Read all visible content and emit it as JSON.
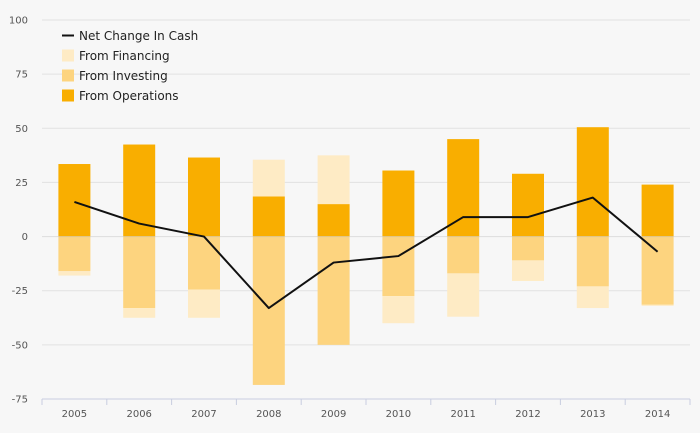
{
  "chart_data": {
    "type": "bar",
    "stacking": "diverging",
    "categories": [
      "2005",
      "2006",
      "2007",
      "2008",
      "2009",
      "2010",
      "2011",
      "2012",
      "2013",
      "2014"
    ],
    "ylim": [
      -75,
      100
    ],
    "yticks": [
      100,
      75,
      50,
      25,
      0,
      -25,
      -50,
      -75
    ],
    "grid": true,
    "legend_position": "top-left",
    "series": [
      {
        "name": "From Operations",
        "type": "bar",
        "color": "#f9ae00",
        "values": [
          33.5,
          42.5,
          36.5,
          18.5,
          15,
          30.5,
          45,
          29,
          50.5,
          24
        ]
      },
      {
        "name": "From Investing",
        "type": "bar",
        "color": "#fdd47f",
        "values": [
          -16,
          -33,
          -24.5,
          -68.5,
          -50,
          -27.5,
          -17,
          -11,
          -23,
          -31.5
        ]
      },
      {
        "name": "From Financing",
        "type": "bar",
        "color": "#feebc5",
        "values": [
          -2,
          -4.5,
          -13,
          17,
          22.5,
          -12.5,
          -20,
          -9.5,
          -10,
          -0.5
        ]
      },
      {
        "name": "Net Change In Cash",
        "type": "line",
        "color": "#111111",
        "values": [
          16,
          6,
          0,
          -33,
          -12,
          -9,
          9,
          9,
          18,
          -7
        ]
      }
    ],
    "legend": [
      {
        "label": "Net Change In Cash",
        "kind": "line",
        "color": "#111111"
      },
      {
        "label": "From Financing",
        "kind": "box",
        "color": "#feebc5"
      },
      {
        "label": "From Investing",
        "kind": "box",
        "color": "#fdd47f"
      },
      {
        "label": "From Operations",
        "kind": "box",
        "color": "#f9ae00"
      }
    ]
  },
  "colors": {
    "background": "#f7f7f7",
    "grid": "#e2e2e2",
    "axis": "#c8cde0",
    "zero_line": "#cccccc"
  }
}
